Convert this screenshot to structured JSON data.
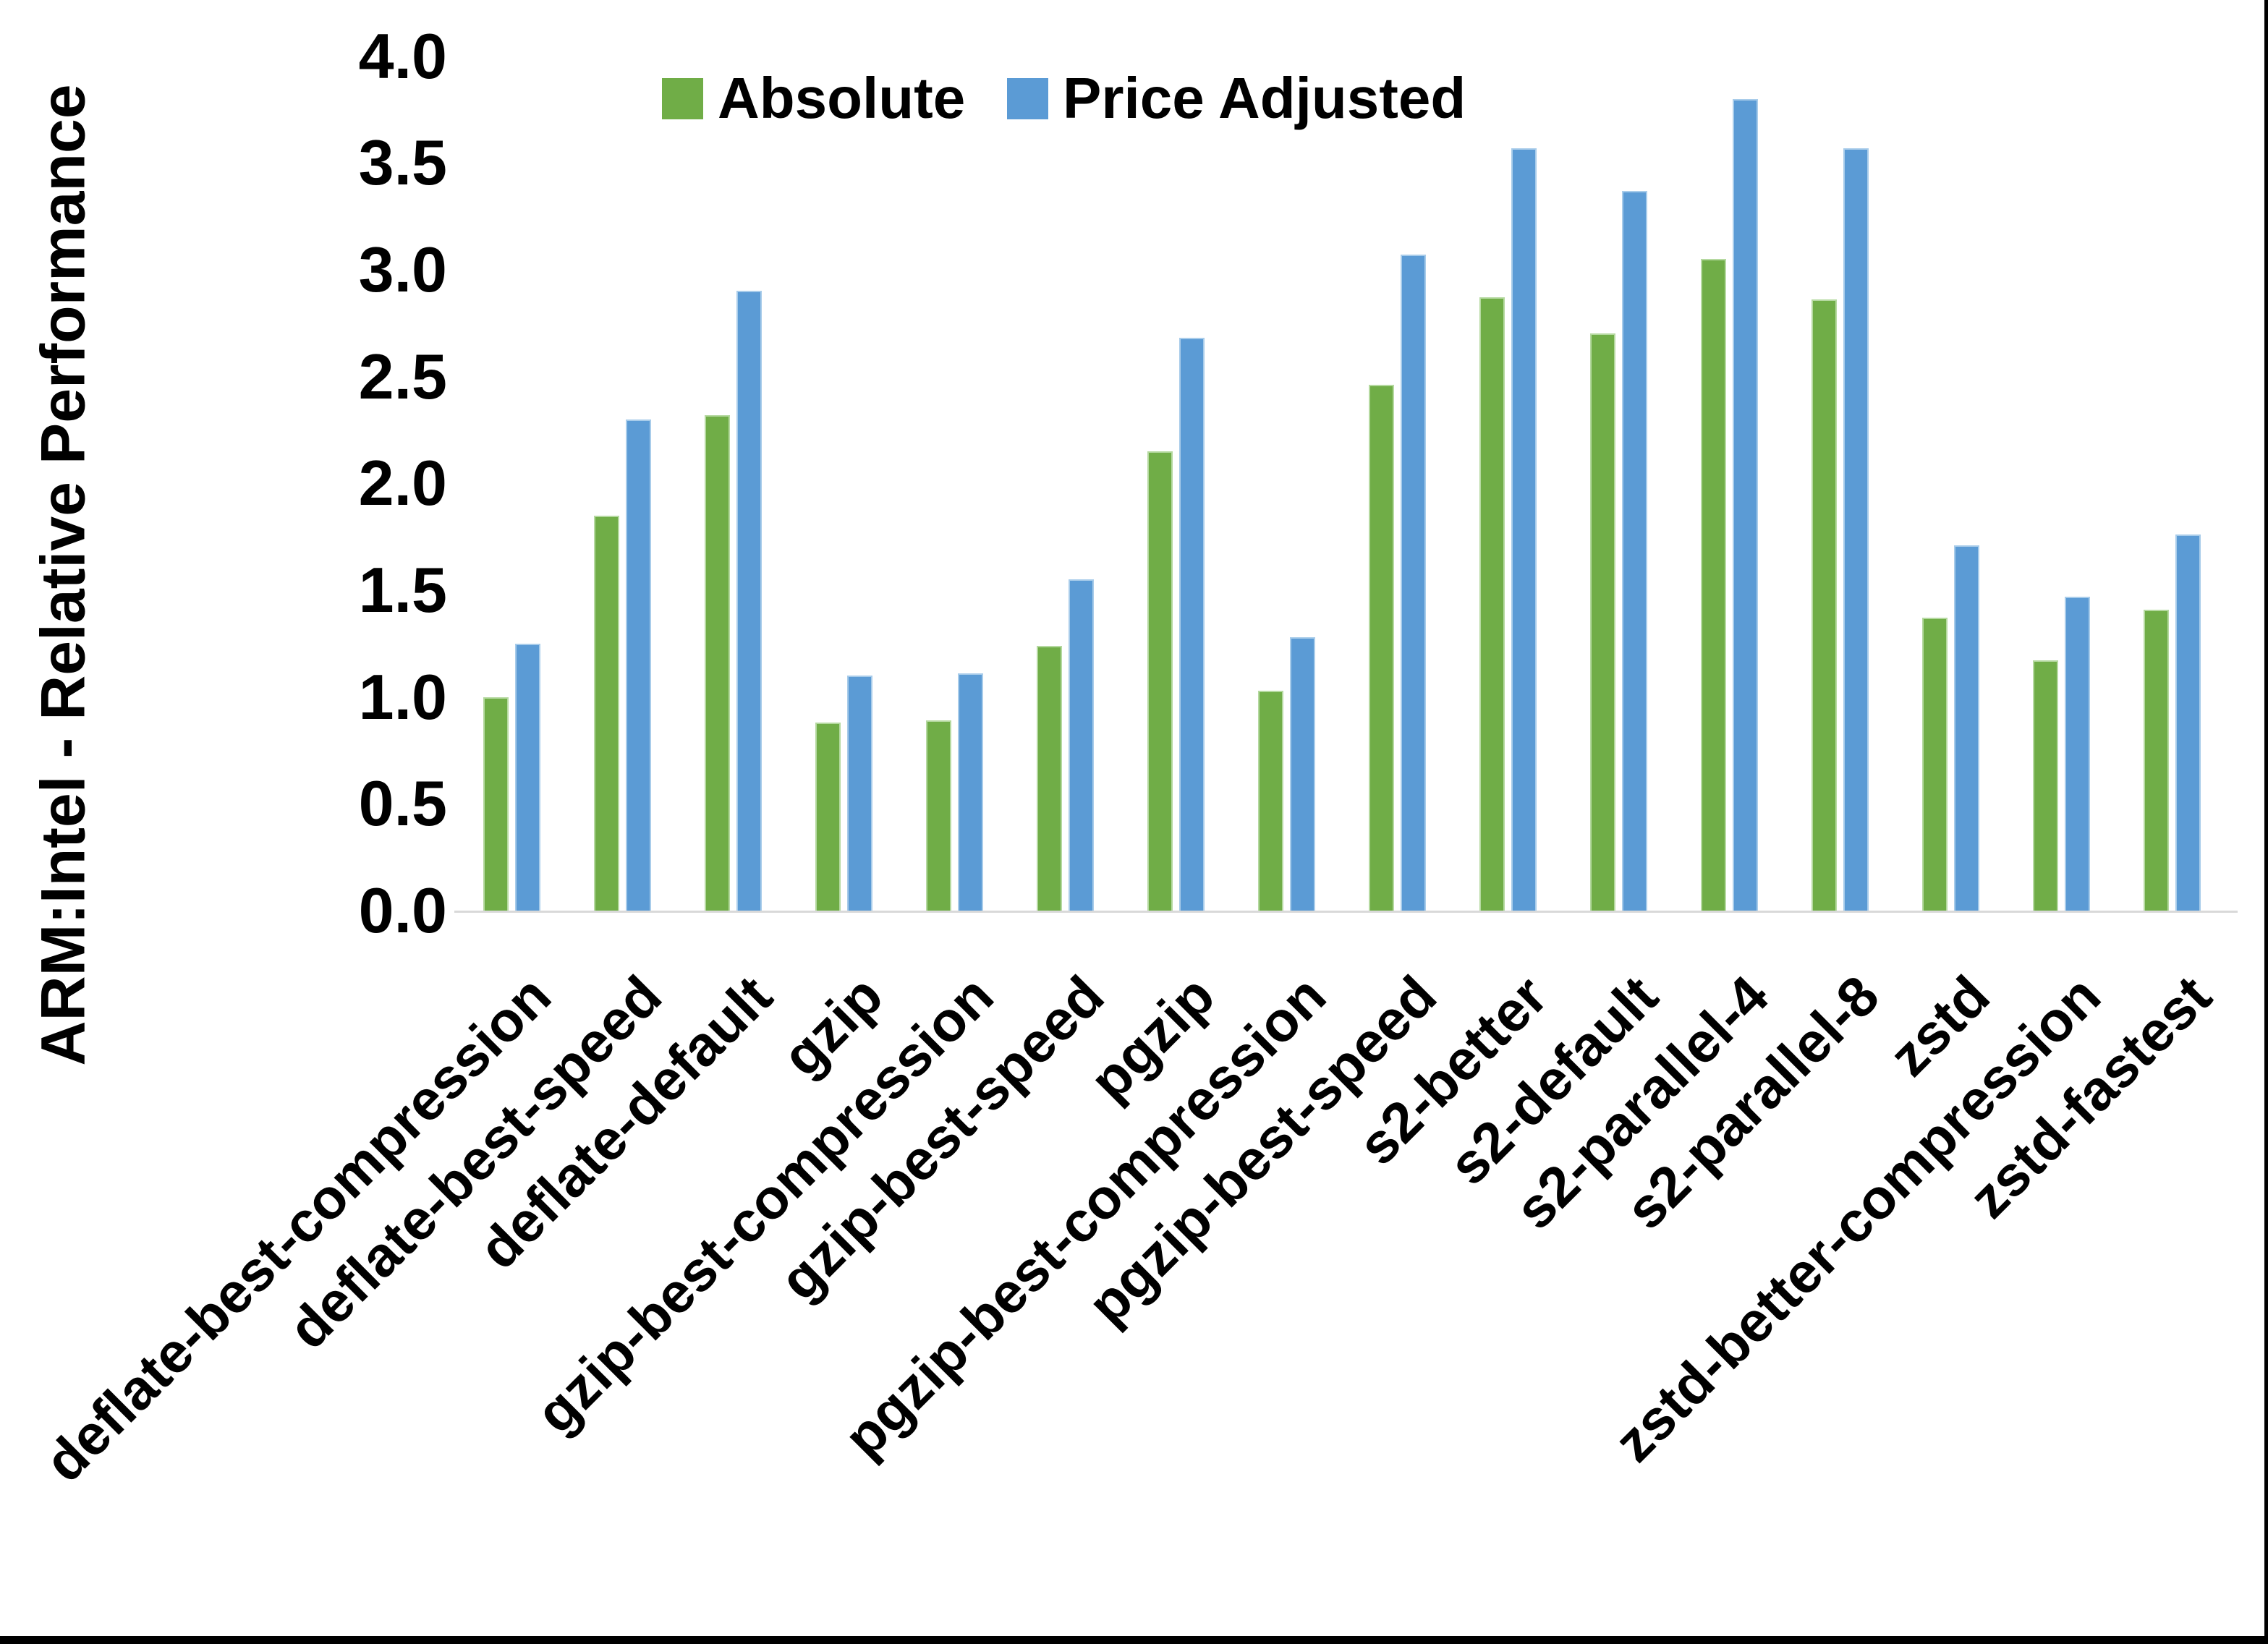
{
  "chart_data": {
    "type": "bar",
    "title": "",
    "xlabel": "",
    "ylabel": "ARM:Intel - Relative Performance",
    "ylim": [
      0.0,
      4.0
    ],
    "ytick_step": 0.5,
    "ytick_labels": [
      "0.0",
      "0.5",
      "1.0",
      "1.5",
      "2.0",
      "2.5",
      "3.0",
      "3.5",
      "4.0"
    ],
    "grid": false,
    "legend_position": "top",
    "categories": [
      "deflate-best-compression",
      "deflate-best-speed",
      "deflate-default",
      "gzip",
      "gzip-best-compression",
      "gzip-best-speed",
      "pgzip",
      "pgzip-best-compression",
      "pgzip-best-speed",
      "s2-better",
      "s2-default",
      "s2-parallel-4",
      "s2-parallel-8",
      "zstd",
      "zstd-better-compression",
      "zstd-fastest"
    ],
    "series": [
      {
        "name": "Absolute",
        "color": "#70AD47",
        "edge_color": "#B5D9A0",
        "values": [
          1.0,
          1.85,
          2.32,
          0.88,
          0.89,
          1.24,
          2.15,
          1.03,
          2.46,
          2.87,
          2.7,
          3.05,
          2.86,
          1.37,
          1.17,
          1.41
        ]
      },
      {
        "name": "Price Adjusted",
        "color": "#5B9BD5",
        "edge_color": "#A8CCEA",
        "values": [
          1.25,
          2.3,
          2.9,
          1.1,
          1.11,
          1.55,
          2.68,
          1.28,
          3.07,
          3.57,
          3.37,
          3.8,
          3.57,
          1.71,
          1.47,
          1.76
        ]
      }
    ],
    "axis_line_color": "#D9D9D9",
    "text_color": "#000000",
    "background_color": "#FFFFFF"
  }
}
